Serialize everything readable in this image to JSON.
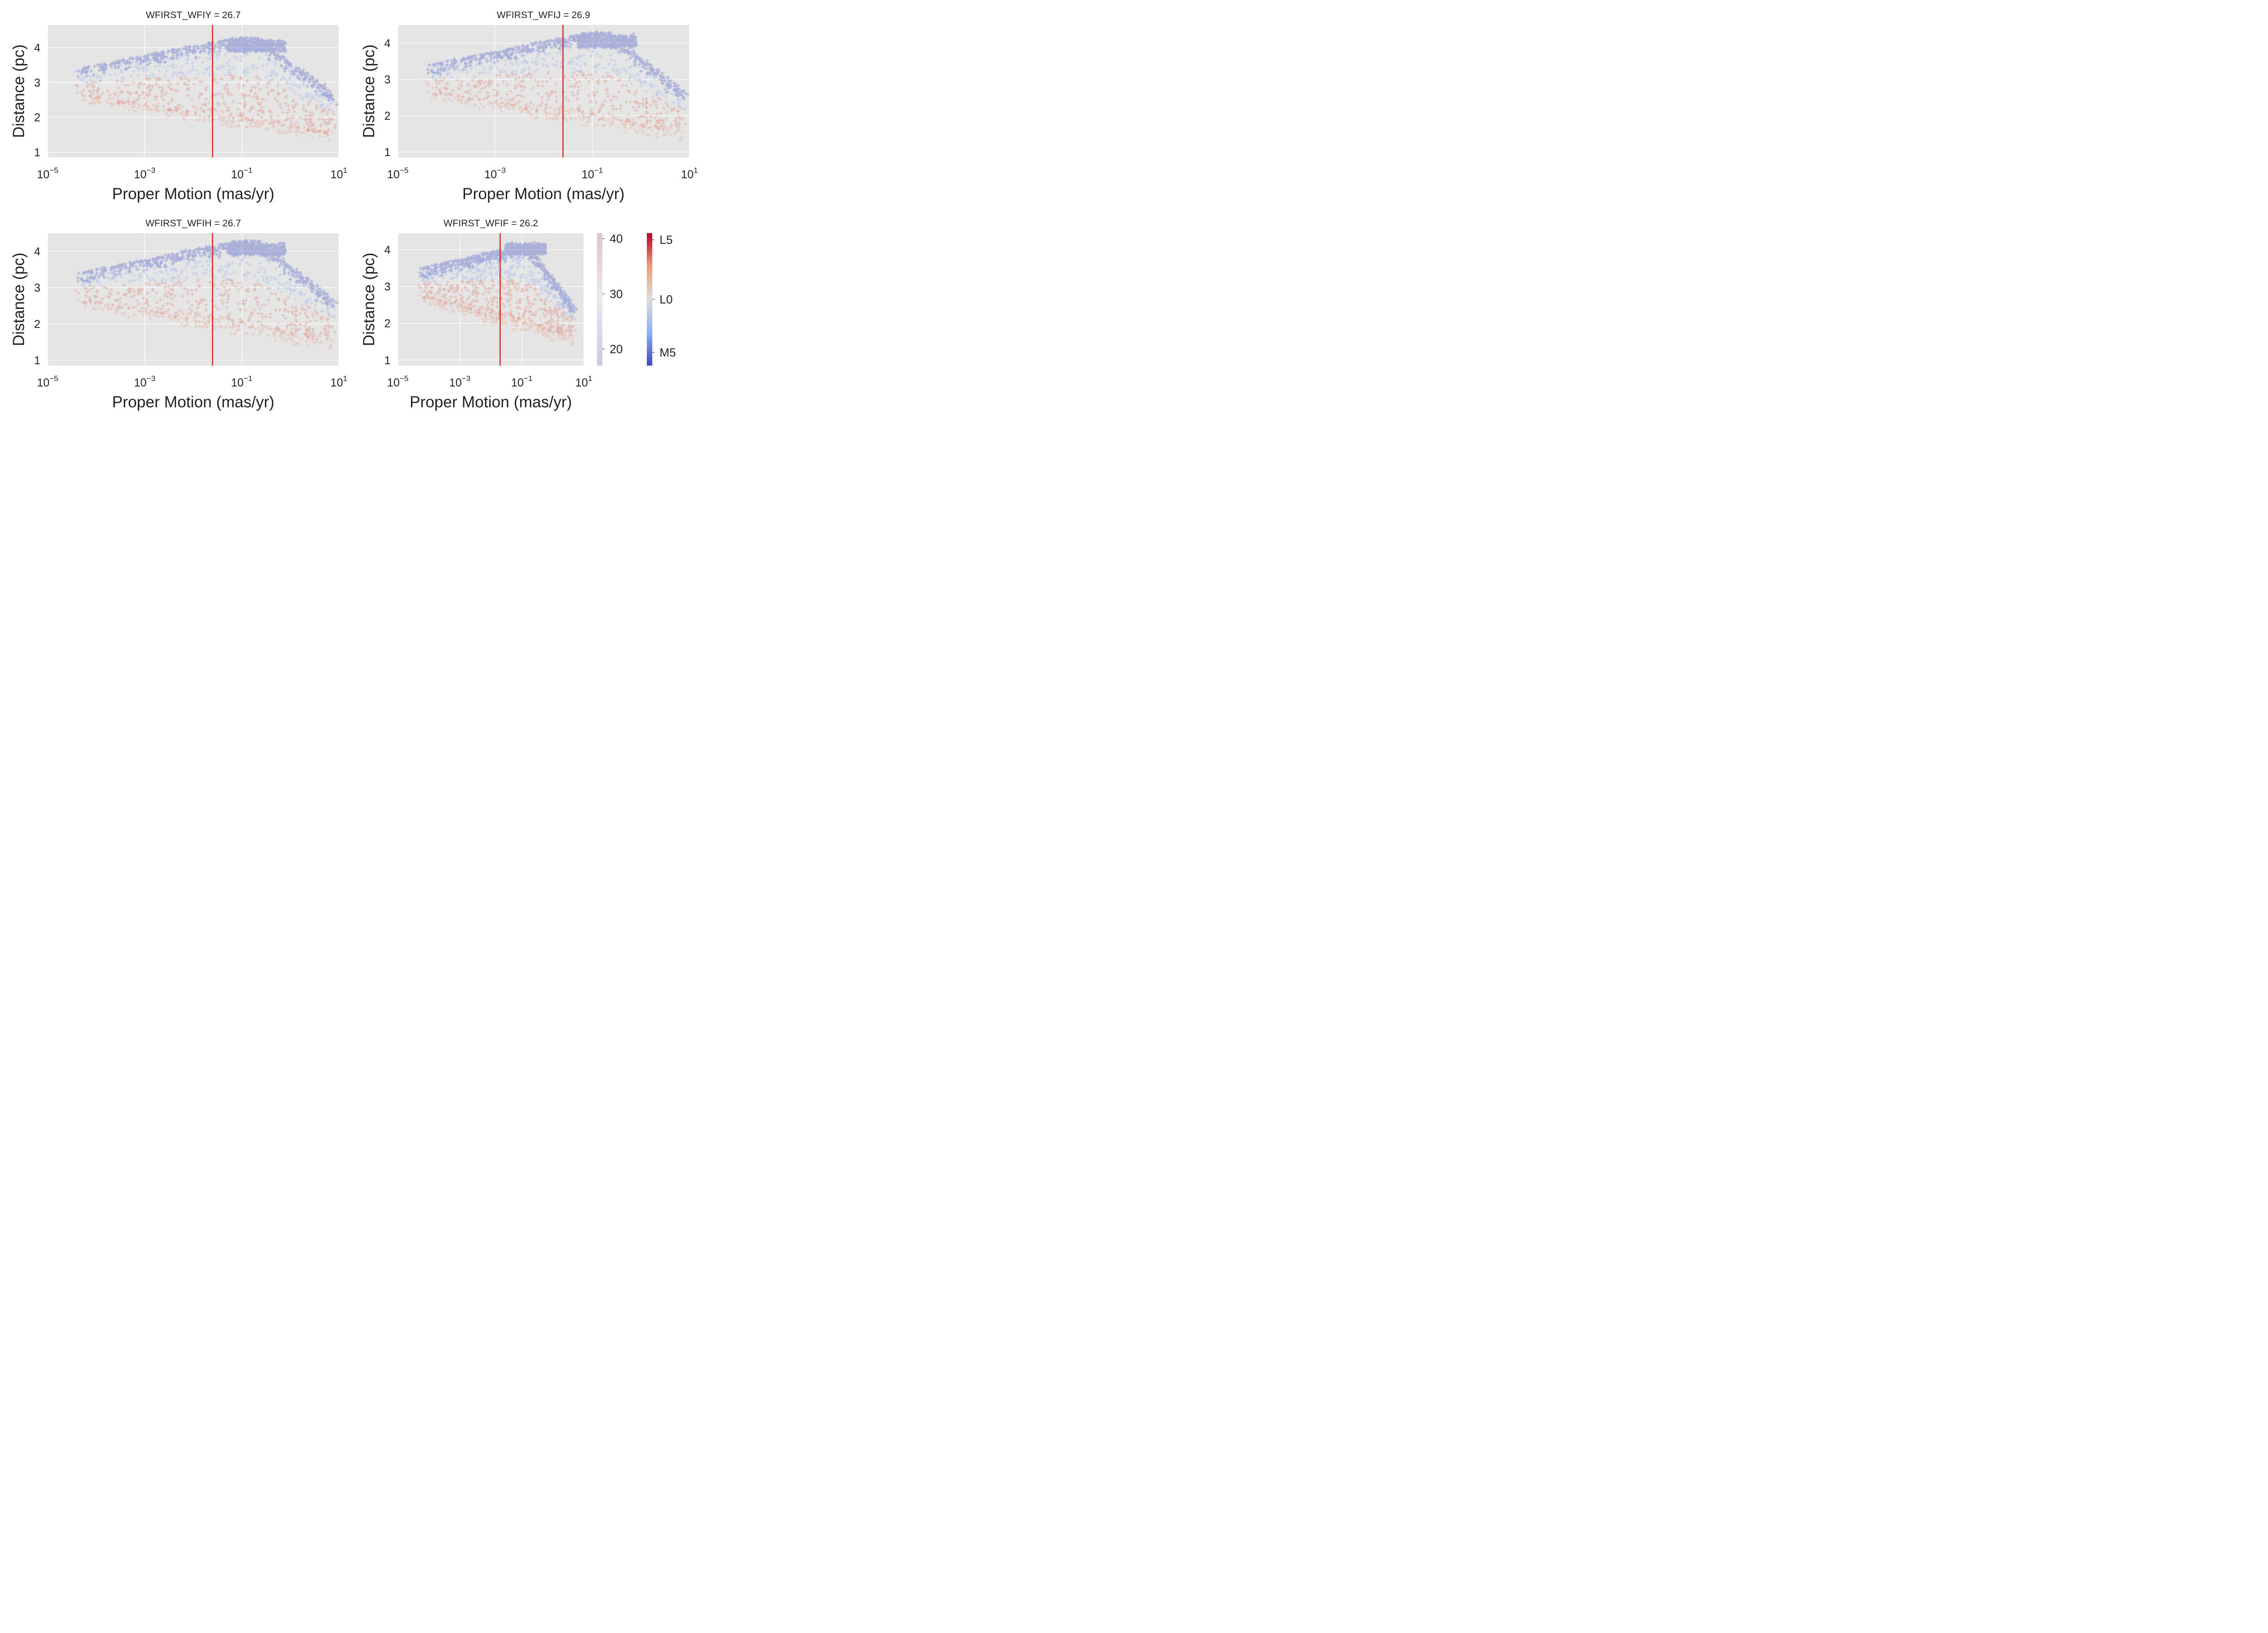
{
  "chart_data": [
    {
      "type": "scatter",
      "title": "WFIRST_WFIY = 26.7",
      "xlabel": "Proper Motion (mas/yr)",
      "ylabel": "Distance (pc)",
      "xscale": "log",
      "xlim": [
        1e-05,
        10
      ],
      "ylim": [
        0.85,
        4.65
      ],
      "xticks": [
        {
          "base": "10",
          "exp": "−5"
        },
        {
          "base": "10",
          "exp": "−3"
        },
        {
          "base": "10",
          "exp": "−1"
        },
        {
          "base": "10",
          "exp": "1"
        }
      ],
      "yticks": [
        "1",
        "2",
        "3",
        "4"
      ],
      "vline": 0.025,
      "vline_color": "#d62728",
      "marker": "+",
      "grid": true,
      "point_cloud": {
        "x_start": 4e-05,
        "x_end": 8,
        "blue_band_y": [
          3.4,
          4.3
        ],
        "tail_x": [
          0.05,
          0.8
        ],
        "tail_y": [
          3.9,
          4.2
        ],
        "red_band_lower_y": [
          2.6,
          1.5
        ]
      }
    },
    {
      "type": "scatter",
      "title": "WFIRST_WFIJ = 26.9",
      "xlabel": "Proper Motion (mas/yr)",
      "ylabel": "Distance (pc)",
      "xscale": "log",
      "xlim": [
        1e-05,
        10
      ],
      "ylim": [
        0.85,
        4.5
      ],
      "xticks": [
        {
          "base": "10",
          "exp": "−5"
        },
        {
          "base": "10",
          "exp": "−3"
        },
        {
          "base": "10",
          "exp": "−1"
        },
        {
          "base": "10",
          "exp": "1"
        }
      ],
      "yticks": [
        "1",
        "2",
        "3",
        "4"
      ],
      "vline": 0.025,
      "vline_color": "#d62728",
      "marker": "+",
      "grid": true,
      "point_cloud": {
        "x_start": 4e-05,
        "x_end": 8,
        "blue_band_y": [
          3.4,
          4.3
        ],
        "tail_x": [
          0.05,
          0.8
        ],
        "tail_y": [
          3.9,
          4.2
        ],
        "red_band_lower_y": [
          2.6,
          1.5
        ]
      }
    },
    {
      "type": "scatter",
      "title": "WFIRST_WFIH = 26.7",
      "xlabel": "Proper Motion (mas/yr)",
      "ylabel": "Distance (pc)",
      "xscale": "log",
      "xlim": [
        1e-05,
        10
      ],
      "ylim": [
        0.85,
        4.5
      ],
      "xticks": [
        {
          "base": "10",
          "exp": "−5"
        },
        {
          "base": "10",
          "exp": "−3"
        },
        {
          "base": "10",
          "exp": "−1"
        },
        {
          "base": "10",
          "exp": "1"
        }
      ],
      "yticks": [
        "1",
        "2",
        "3",
        "4"
      ],
      "vline": 0.025,
      "vline_color": "#d62728",
      "marker": "+",
      "grid": true,
      "point_cloud": {
        "x_start": 4e-05,
        "x_end": 8,
        "blue_band_y": [
          3.4,
          4.3
        ],
        "tail_x": [
          0.05,
          0.8
        ],
        "tail_y": [
          3.9,
          4.2
        ],
        "red_band_lower_y": [
          2.6,
          1.5
        ]
      }
    },
    {
      "type": "scatter",
      "title": "WFIRST_WFIF = 26.2",
      "xlabel": "Proper Motion (mas/yr)",
      "ylabel": "Distance (pc)",
      "xscale": "log",
      "xlim": [
        1e-05,
        10
      ],
      "ylim": [
        0.85,
        4.45
      ],
      "xticks": [
        {
          "base": "10",
          "exp": "−5"
        },
        {
          "base": "10",
          "exp": "−3"
        },
        {
          "base": "10",
          "exp": "−1"
        },
        {
          "base": "10",
          "exp": "1"
        }
      ],
      "yticks": [
        "1",
        "2",
        "3",
        "4"
      ],
      "vline": 0.02,
      "vline_color": "#d62728",
      "marker": "+",
      "grid": true,
      "point_cloud": {
        "x_start": 5e-05,
        "x_end": 5,
        "blue_band_y": [
          3.5,
          4.1
        ],
        "tail_x": [
          0.03,
          0.6
        ],
        "tail_y": [
          3.9,
          4.15
        ],
        "red_band_lower_y": [
          2.7,
          1.6
        ]
      }
    }
  ],
  "colorbars": [
    {
      "name": "alpha",
      "range": [
        17,
        41
      ],
      "ticks": [
        "20",
        "30",
        "40"
      ],
      "tick_values": [
        20,
        30,
        40
      ],
      "colors": [
        "#c7c9e2",
        "#e9e9ef",
        "#e2c4c6"
      ]
    },
    {
      "name": "spectral-type",
      "range": [
        0,
        1
      ],
      "ticks": [
        "M5",
        "L0",
        "L5"
      ],
      "tick_values": [
        0.1,
        0.5,
        0.95
      ],
      "colors": [
        "#3b4cc0",
        "#8db0fe",
        "#dddcdc",
        "#f49a7b",
        "#b40426"
      ]
    }
  ],
  "style": {
    "background": "#e5e5e5",
    "grid_color": "#ffffff",
    "cloud_blue": "#3b4cc0",
    "cloud_midblue": "#7a9af0",
    "cloud_red": "#d65a4a",
    "cloud_orange": "#e8876a"
  }
}
